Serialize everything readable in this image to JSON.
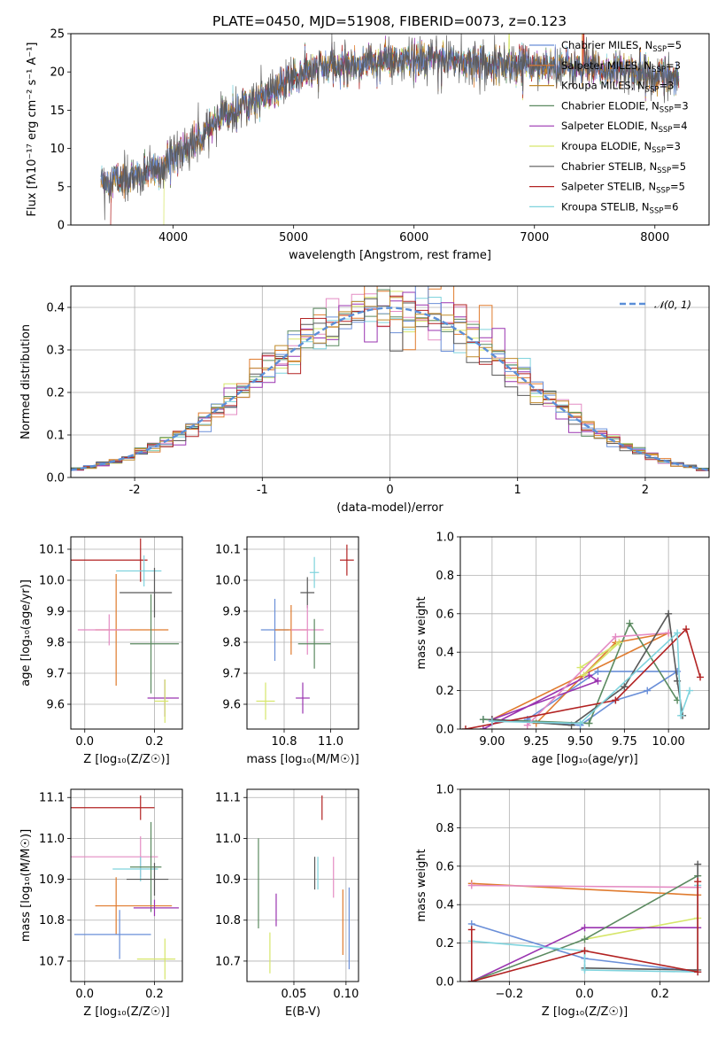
{
  "figure_title": "PLATE=0450, MJD=51908, FIBERID=0073, z=0.123",
  "colors": {
    "Chabrier MILES": "#6a8fd8",
    "Salpeter MILES": "#e07b2e",
    "Kroupa MILES": "#c08a2a",
    "Chabrier ELODIE": "#5b8a60",
    "Salpeter ELODIE": "#9a34b0",
    "Kroupa ELODIE": "#d6e66a",
    "Chabrier STELIB": "#595959",
    "Salpeter STELIB": "#b22222",
    "Kroupa STELIB": "#7fd3dd",
    "pink": "#e48bc3",
    "normal": "#5b8fd8"
  },
  "chart_data": [
    {
      "id": "spectrum",
      "type": "line",
      "xlabel": "wavelength [Angstrom, rest frame]",
      "ylabel": "Flux [fλ10⁻¹⁷ erg cm⁻² s⁻¹ A⁻¹]",
      "xlim": [
        3150,
        8450
      ],
      "ylim": [
        0,
        25
      ],
      "xticks": [
        4000,
        5000,
        6000,
        7000,
        8000
      ],
      "yticks": [
        0,
        5,
        10,
        15,
        20,
        25
      ],
      "grid": false,
      "legend_position": "right",
      "legend": [
        "Chabrier MILES, N_SSP=5",
        "Salpeter MILES, N_SSP=3",
        "Kroupa MILES, N_SSP=3",
        "Chabrier ELODIE, N_SSP=3",
        "Salpeter ELODIE, N_SSP=4",
        "Kroupa ELODIE, N_SSP=3",
        "Chabrier STELIB, N_SSP=5",
        "Salpeter STELIB, N_SSP=5",
        "Kroupa STELIB, N_SSP=6"
      ],
      "continuum": [
        [
          3400,
          5.8
        ],
        [
          3500,
          6
        ],
        [
          3700,
          6.3
        ],
        [
          3900,
          7.5
        ],
        [
          4000,
          9
        ],
        [
          4100,
          10
        ],
        [
          4200,
          11
        ],
        [
          4300,
          12.5
        ],
        [
          4400,
          14
        ],
        [
          4600,
          16
        ],
        [
          4800,
          17
        ],
        [
          4900,
          18
        ],
        [
          5000,
          19.5
        ],
        [
          5200,
          20.5
        ],
        [
          5400,
          20.8
        ],
        [
          5600,
          21.2
        ],
        [
          5800,
          21.5
        ],
        [
          6000,
          21.3
        ],
        [
          6200,
          21.8
        ],
        [
          6400,
          21.5
        ],
        [
          6600,
          21.2
        ],
        [
          6800,
          21
        ],
        [
          7000,
          21
        ],
        [
          7200,
          20.8
        ],
        [
          7400,
          20.5
        ],
        [
          7600,
          20.3
        ],
        [
          7800,
          20
        ],
        [
          8000,
          19.5
        ],
        [
          8200,
          19.3
        ]
      ]
    },
    {
      "id": "residuals",
      "type": "histogram",
      "xlabel": "(data-model)/error",
      "ylabel": "Normed distribution",
      "xlim": [
        -2.5,
        2.5
      ],
      "ylim": [
        0,
        0.45
      ],
      "xticks": [
        -2,
        -1,
        0,
        1,
        2
      ],
      "yticks": [
        0.0,
        0.1,
        0.2,
        0.3,
        0.4
      ],
      "grid": true,
      "legend_position": "top-right",
      "legend": [
        "𝒩(0, 1)"
      ],
      "bin_width": 0.1
    },
    {
      "id": "age-vs-Z",
      "type": "errorbar",
      "xlabel": "Z [log₁₀(Z/Z☉)]",
      "ylabel": "age  [log₁₀(age/yr)]",
      "xlim": [
        -0.04,
        0.28
      ],
      "ylim": [
        9.52,
        10.14
      ],
      "xticks": [
        0.0,
        0.2
      ],
      "yticks": [
        9.6,
        9.7,
        9.8,
        9.9,
        10.0,
        10.1
      ],
      "grid": true,
      "points": [
        {
          "model": "Salpeter STELIB",
          "x": 0.16,
          "xerr": [
            0.2,
            0.02
          ],
          "y": 10.065,
          "yerr": 0.07
        },
        {
          "model": "Kroupa STELIB",
          "x": 0.17,
          "xerr": [
            0.08,
            0.05
          ],
          "y": 10.03,
          "yerr": 0.05
        },
        {
          "model": "Chabrier STELIB",
          "x": 0.2,
          "xerr": [
            0.1,
            0.05
          ],
          "y": 9.96,
          "yerr": 0.08
        },
        {
          "model": "Salpeter MILES",
          "x": 0.09,
          "xerr": [
            0.06,
            0.15
          ],
          "y": 9.84,
          "yerr": 0.18
        },
        {
          "model": "pink",
          "x": 0.07,
          "xerr": [
            0.09,
            0.06
          ],
          "y": 9.84,
          "yerr": 0.05
        },
        {
          "model": "Chabrier ELODIE",
          "x": 0.19,
          "xerr": [
            0.06,
            0.08
          ],
          "y": 9.795,
          "yerr": 0.16
        },
        {
          "model": "Salpeter ELODIE",
          "x": 0.23,
          "xerr": [
            0.05,
            0.04
          ],
          "y": 9.62,
          "yerr": 0.06
        },
        {
          "model": "Kroupa ELODIE",
          "x": 0.23,
          "xerr": [
            0.03,
            0.01
          ],
          "y": 9.61,
          "yerr": 0.07
        }
      ]
    },
    {
      "id": "age-vs-mass",
      "type": "errorbar",
      "xlabel": "mass [log₁₀(M/M☉)]",
      "ylabel": "",
      "xlim": [
        10.64,
        11.12
      ],
      "ylim": [
        9.52,
        10.14
      ],
      "xticks": [
        10.8,
        11.0
      ],
      "yticks": [
        9.6,
        9.7,
        9.8,
        9.9,
        10.0,
        10.1
      ],
      "grid": true,
      "points": [
        {
          "model": "Salpeter STELIB",
          "x": 11.07,
          "xerr": 0.03,
          "y": 10.065,
          "yerr": 0.05
        },
        {
          "model": "Kroupa STELIB",
          "x": 10.93,
          "xerr": 0.02,
          "y": 10.025,
          "yerr": 0.05
        },
        {
          "model": "Chabrier STELIB",
          "x": 10.9,
          "xerr": 0.03,
          "y": 9.96,
          "yerr": 0.05
        },
        {
          "model": "Chabrier MILES",
          "x": 10.76,
          "xerr": 0.06,
          "y": 9.84,
          "yerr": 0.1
        },
        {
          "model": "Salpeter MILES",
          "x": 10.83,
          "xerr": 0.07,
          "y": 9.84,
          "yerr": 0.08
        },
        {
          "model": "pink",
          "x": 10.9,
          "xerr": 0.07,
          "y": 9.84,
          "yerr": 0.08
        },
        {
          "model": "Chabrier ELODIE",
          "x": 10.93,
          "xerr": 0.07,
          "y": 9.795,
          "yerr": 0.08
        },
        {
          "model": "Salpeter ELODIE",
          "x": 10.88,
          "xerr": 0.03,
          "y": 9.62,
          "yerr": 0.05
        },
        {
          "model": "Kroupa ELODIE",
          "x": 10.72,
          "xerr": 0.04,
          "y": 9.61,
          "yerr": 0.06
        }
      ]
    },
    {
      "id": "weight-vs-age",
      "type": "line",
      "xlabel": "age  [log₁₀(age/yr)]",
      "ylabel": "mass weight",
      "xlim": [
        8.82,
        10.23
      ],
      "ylim": [
        0,
        1
      ],
      "xticks": [
        9.0,
        9.25,
        9.5,
        9.75,
        10.0
      ],
      "yticks": [
        0.0,
        0.2,
        0.4,
        0.6,
        0.8,
        1.0
      ],
      "grid": true,
      "series": [
        {
          "model": "Chabrier MILES",
          "points": [
            [
              8.95,
              0.05
            ],
            [
              9.5,
              0.02
            ],
            [
              9.7,
              0.15
            ],
            [
              9.88,
              0.2
            ],
            [
              10.05,
              0.3
            ],
            [
              9.6,
              0.3
            ],
            [
              9.2,
              0.05
            ]
          ]
        },
        {
          "model": "Salpeter MILES",
          "points": [
            [
              9.25,
              0.03
            ],
            [
              9.7,
              0.45
            ],
            [
              10.0,
              0.5
            ],
            [
              9.0,
              0.05
            ]
          ]
        },
        {
          "model": "Chabrier ELODIE",
          "points": [
            [
              8.95,
              0.05
            ],
            [
              9.55,
              0.03
            ],
            [
              9.78,
              0.55
            ],
            [
              10.05,
              0.15
            ]
          ]
        },
        {
          "model": "Salpeter ELODIE",
          "points": [
            [
              8.95,
              0.0
            ],
            [
              9.55,
              0.28
            ],
            [
              9.6,
              0.25
            ],
            [
              9.0,
              0.05
            ]
          ]
        },
        {
          "model": "Kroupa ELODIE",
          "points": [
            [
              9.5,
              0.32
            ],
            [
              9.72,
              0.45
            ],
            [
              9.52,
              0.28
            ]
          ]
        },
        {
          "model": "pink",
          "points": [
            [
              9.2,
              0.02
            ],
            [
              9.7,
              0.48
            ],
            [
              10.0,
              0.5
            ]
          ]
        },
        {
          "model": "Chabrier STELIB",
          "points": [
            [
              9.0,
              0.05
            ],
            [
              9.45,
              0.02
            ],
            [
              9.75,
              0.22
            ],
            [
              10.0,
              0.6
            ],
            [
              10.05,
              0.25
            ],
            [
              10.08,
              0.07
            ]
          ]
        },
        {
          "model": "Salpeter STELIB",
          "points": [
            [
              8.85,
              0.0
            ],
            [
              9.7,
              0.15
            ],
            [
              10.1,
              0.52
            ],
            [
              10.18,
              0.27
            ]
          ]
        },
        {
          "model": "Kroupa STELIB",
          "points": [
            [
              9.0,
              0.04
            ],
            [
              9.5,
              0.03
            ],
            [
              10.05,
              0.5
            ],
            [
              10.07,
              0.07
            ],
            [
              10.12,
              0.2
            ]
          ]
        }
      ]
    },
    {
      "id": "mass-vs-Z",
      "type": "errorbar",
      "xlabel": "Z [log₁₀(Z/Z☉)]",
      "ylabel": "mass [log₁₀(M/M☉)]",
      "xlim": [
        -0.04,
        0.28
      ],
      "ylim": [
        10.65,
        11.12
      ],
      "xticks": [
        0.0,
        0.2
      ],
      "yticks": [
        10.7,
        10.8,
        10.9,
        11.0,
        11.1
      ],
      "grid": true,
      "points": [
        {
          "model": "Salpeter STELIB",
          "x": 0.16,
          "xerr": [
            0.2,
            0.04
          ],
          "y": 11.075,
          "yerr": 0.03
        },
        {
          "model": "pink",
          "x": 0.16,
          "xerr": [
            0.2,
            0.05
          ],
          "y": 10.955,
          "yerr": 0.05
        },
        {
          "model": "Kroupa STELIB",
          "x": 0.16,
          "xerr": [
            0.08,
            0.05
          ],
          "y": 10.925,
          "yerr": 0.03
        },
        {
          "model": "Chabrier ELODIE",
          "x": 0.19,
          "xerr": [
            0.06,
            0.03
          ],
          "y": 10.93,
          "yerr": 0.11
        },
        {
          "model": "Chabrier STELIB",
          "x": 0.2,
          "xerr": [
            0.08,
            0.04
          ],
          "y": 10.9,
          "yerr": 0.04
        },
        {
          "model": "Salpeter MILES",
          "x": 0.09,
          "xerr": [
            0.06,
            0.16
          ],
          "y": 10.835,
          "yerr": 0.07
        },
        {
          "model": "Salpeter ELODIE",
          "x": 0.2,
          "xerr": [
            0.06,
            0.07
          ],
          "y": 10.83,
          "yerr": 0.02
        },
        {
          "model": "Chabrier MILES",
          "x": 0.1,
          "xerr": [
            0.13,
            0.09
          ],
          "y": 10.765,
          "yerr": 0.06
        },
        {
          "model": "Kroupa ELODIE",
          "x": 0.23,
          "xerr": [
            0.08,
            0.03
          ],
          "y": 10.705,
          "yerr": 0.05
        }
      ]
    },
    {
      "id": "mass-vs-ebv",
      "type": "errorbar",
      "xlabel": "E(B-V)",
      "ylabel": "",
      "xlim": [
        0.005,
        0.112
      ],
      "ylim": [
        10.65,
        11.12
      ],
      "xticks": [
        0.05,
        0.1
      ],
      "yticks": [
        10.7,
        10.8,
        10.9,
        11.0,
        11.1
      ],
      "grid": true,
      "points": [
        {
          "model": "Salpeter STELIB",
          "x": 0.077,
          "y": 11.075,
          "yerr": 0.03
        },
        {
          "model": "Chabrier ELODIE",
          "x": 0.016,
          "y": 10.89,
          "yerr": 0.11
        },
        {
          "model": "Chabrier STELIB",
          "x": 0.07,
          "y": 10.915,
          "yerr": 0.04
        },
        {
          "model": "Kroupa STELIB",
          "x": 0.073,
          "y": 10.915,
          "yerr": 0.04
        },
        {
          "model": "pink",
          "x": 0.088,
          "y": 10.905,
          "yerr": 0.05
        },
        {
          "model": "Salpeter ELODIE",
          "x": 0.033,
          "y": 10.825,
          "yerr": 0.04
        },
        {
          "model": "Salpeter MILES",
          "x": 0.097,
          "y": 10.795,
          "yerr": 0.08
        },
        {
          "model": "Chabrier MILES",
          "x": 0.103,
          "y": 10.78,
          "yerr": 0.1
        },
        {
          "model": "Kroupa ELODIE",
          "x": 0.027,
          "y": 10.72,
          "yerr": 0.05
        }
      ]
    },
    {
      "id": "weight-vs-Z",
      "type": "line",
      "xlabel": "Z [log₁₀(Z/Z☉)]",
      "ylabel": "mass weight",
      "xlim": [
        -0.33,
        0.33
      ],
      "ylim": [
        0,
        1
      ],
      "xticks": [
        -0.2,
        0.0,
        0.2
      ],
      "yticks": [
        0.0,
        0.2,
        0.4,
        0.6,
        0.8,
        1.0
      ],
      "grid": true,
      "series": [
        {
          "model": "Salpeter MILES",
          "points": [
            [
              -0.3,
              0.51
            ],
            [
              0.3,
              0.45
            ]
          ]
        },
        {
          "model": "pink",
          "points": [
            [
              -0.3,
              0.5
            ],
            [
              0.3,
              0.49
            ]
          ]
        },
        {
          "model": "Chabrier MILES",
          "points": [
            [
              -0.3,
              0.3
            ],
            [
              0.0,
              0.12
            ],
            [
              0.3,
              0.05
            ]
          ]
        },
        {
          "model": "Kroupa ELODIE",
          "points": [
            [
              0.0,
              0.22
            ],
            [
              0.3,
              0.33
            ]
          ]
        },
        {
          "model": "Salpeter ELODIE",
          "points": [
            [
              -0.3,
              0.0
            ],
            [
              0.0,
              0.28
            ],
            [
              0.3,
              0.28
            ]
          ]
        },
        {
          "model": "Chabrier ELODIE",
          "points": [
            [
              -0.3,
              0.0
            ],
            [
              0.0,
              0.22
            ],
            [
              0.3,
              0.55
            ]
          ]
        },
        {
          "model": "Chabrier STELIB",
          "points": [
            [
              0.0,
              0.07
            ],
            [
              0.3,
              0.06
            ],
            [
              0.3,
              0.61
            ]
          ]
        },
        {
          "model": "Kroupa STELIB",
          "points": [
            [
              -0.3,
              0.21
            ],
            [
              0.0,
              0.16
            ],
            [
              0.0,
              0.06
            ],
            [
              0.3,
              0.05
            ],
            [
              0.3,
              0.5
            ]
          ]
        },
        {
          "model": "Salpeter STELIB",
          "points": [
            [
              -0.3,
              0.27
            ],
            [
              -0.3,
              0.0
            ],
            [
              0.0,
              0.16
            ],
            [
              0.3,
              0.05
            ],
            [
              0.3,
              0.52
            ]
          ]
        }
      ]
    }
  ]
}
